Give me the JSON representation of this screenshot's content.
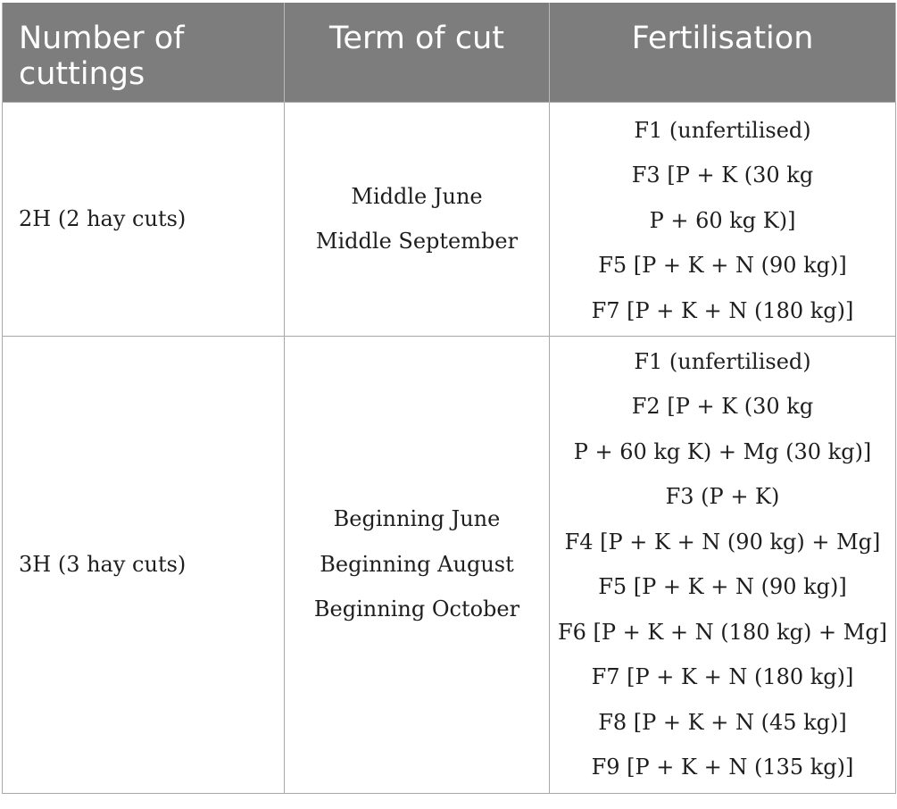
{
  "table": {
    "headers": [
      "Number of cuttings",
      "Term of cut",
      "Fertilisation"
    ],
    "rows": [
      {
        "cuttings": "2H (2 hay cuts)",
        "term": [
          "Middle June",
          "Middle September"
        ],
        "fertilisation": [
          "F1 (unfertilised)",
          "F3 [P + K (30 kg",
          "P + 60 kg K)]",
          "F5 [P + K + N (90 kg)]",
          "F7 [P + K + N (180 kg)]"
        ]
      },
      {
        "cuttings": "3H (3 hay cuts)",
        "term": [
          "Beginning June",
          "Beginning August",
          "Beginning October"
        ],
        "fertilisation": [
          "F1 (unfertilised)",
          "F2 [P + K (30 kg",
          "P + 60 kg K) + Mg (30 kg)]",
          "F3 (P + K)",
          "F4 [P + K + N (90 kg) + Mg]",
          "F5 [P + K + N (90 kg)]",
          "F6 [P + K + N (180 kg) + Mg]",
          "F7 [P + K + N (180 kg)]",
          "F8 [P + K + N (45 kg)]",
          "F9 [P + K + N (135 kg)]"
        ]
      }
    ]
  }
}
